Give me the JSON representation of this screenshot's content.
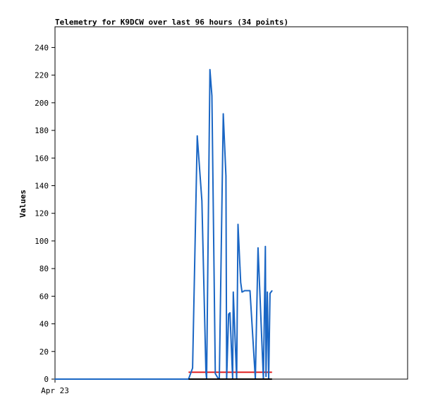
{
  "chart_data": {
    "type": "line",
    "title": "Telemetry for K9DCW over last 96 hours (34 points)",
    "xlabel": "",
    "ylabel": "Values",
    "ylim": [
      0,
      255
    ],
    "yticks": [
      0,
      20,
      40,
      60,
      80,
      100,
      120,
      140,
      160,
      180,
      200,
      220,
      240
    ],
    "xtick_labels": [
      "Apr 23"
    ],
    "grid": false,
    "series": [
      {
        "color": "#1a66c4",
        "x": [
          0.0,
          0.1,
          0.18,
          0.26,
          0.33,
          0.38,
          0.44,
          0.5,
          0.56,
          0.61,
          0.66,
          0.7,
          0.74,
          0.78,
          0.81,
          0.84,
          0.87,
          0.9,
          0.92,
          0.935,
          0.95,
          1.0,
          1.03,
          1.06,
          1.08,
          1.1,
          1.12,
          1.14,
          1.16,
          1.18,
          1.2,
          1.22,
          1.24,
          1.26
        ],
        "y": [
          0,
          0,
          0,
          0,
          0,
          0,
          0,
          0,
          0,
          0,
          0,
          0,
          0,
          0,
          0,
          0,
          0,
          0,
          0,
          0,
          0,
          0,
          0,
          0,
          0,
          0,
          0,
          0,
          0,
          0,
          0,
          0,
          0,
          0
        ]
      },
      {
        "color": "#1a66c4",
        "x": [
          1.0,
          1.03,
          1.065,
          1.1,
          1.13,
          1.135,
          1.16,
          1.175,
          1.2,
          1.225,
          1.23,
          1.26,
          1.28,
          1.285,
          1.3,
          1.31,
          1.33,
          1.335,
          1.36,
          1.37,
          1.385,
          1.39,
          1.4,
          1.42,
          1.46,
          1.5,
          1.52,
          1.56,
          1.575,
          1.58,
          1.59,
          1.6,
          1.61,
          1.625
        ],
        "y": [
          0,
          8,
          176,
          129,
          5,
          0,
          224,
          205,
          4,
          0,
          0,
          192,
          147,
          0,
          47,
          48,
          0,
          63,
          0,
          112,
          81,
          70,
          63,
          64,
          64,
          0,
          95,
          0,
          96,
          2,
          63,
          0,
          62,
          64
        ]
      }
    ],
    "reference_lines": [
      {
        "y": 5,
        "color": "#e02020"
      },
      {
        "y": 0,
        "color": "#000000"
      }
    ]
  }
}
